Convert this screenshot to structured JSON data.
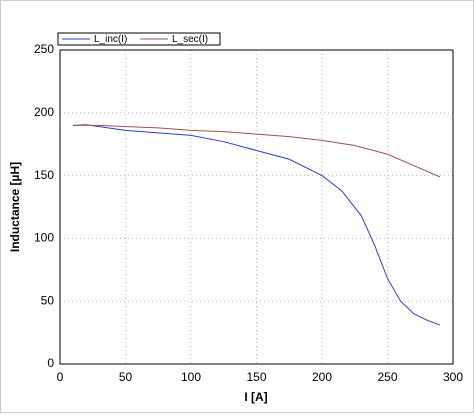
{
  "chart_data": {
    "type": "line",
    "xlabel": "I [A]",
    "ylabel": "Inductance [µH]",
    "xlim": [
      0,
      300
    ],
    "xticks": [
      0,
      50,
      100,
      150,
      200,
      250,
      300
    ],
    "ylim": [
      0,
      250
    ],
    "yticks": [
      0,
      50,
      100,
      150,
      200,
      250
    ],
    "grid": true,
    "legend": "top-left",
    "series": [
      {
        "name": "L_inc(I)",
        "color": "#2b3fcf",
        "x": [
          10,
          20,
          30,
          50,
          75,
          100,
          125,
          150,
          175,
          200,
          215,
          230,
          240,
          250,
          260,
          270,
          280,
          290
        ],
        "values": [
          190,
          190.5,
          189,
          186,
          184,
          182,
          177,
          170,
          163,
          150,
          138,
          118,
          95,
          68,
          50,
          40,
          35,
          31
        ]
      },
      {
        "name": "L_sec(I)",
        "color": "#a0524a",
        "x": [
          10,
          30,
          50,
          75,
          100,
          125,
          150,
          175,
          200,
          225,
          250,
          270,
          290
        ],
        "values": [
          190,
          190,
          189,
          188,
          186,
          185,
          183,
          181,
          178,
          174,
          167,
          158,
          149
        ]
      }
    ]
  }
}
